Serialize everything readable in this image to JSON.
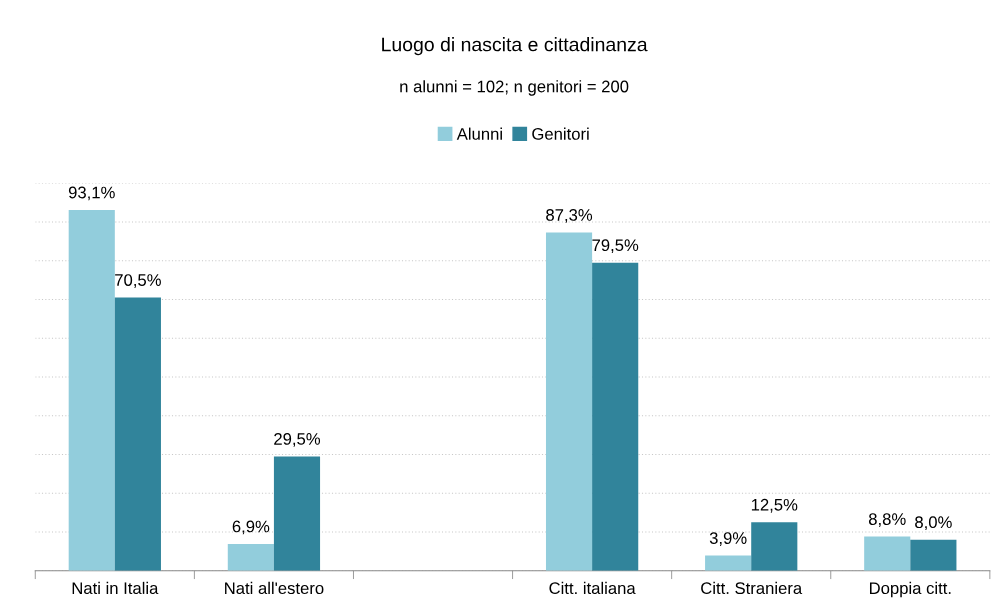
{
  "chart_data": {
    "type": "bar",
    "title": "Luogo di nascita e cittadinanza",
    "subtitle": "n alunni = 102; n genitori = 200",
    "categories": [
      "Nati in Italia",
      "Nati all'estero",
      null,
      "Citt. italiana",
      "Citt. Straniera",
      "Doppia citt."
    ],
    "series": [
      {
        "name": "Alunni",
        "color": "#92cddc",
        "values": [
          93.1,
          6.9,
          null,
          87.3,
          3.9,
          8.8
        ],
        "value_labels": [
          "93,1%",
          "6,9%",
          null,
          "87,3%",
          "3,9%",
          "8,8%"
        ]
      },
      {
        "name": "Genitori",
        "color": "#31849b",
        "values": [
          70.5,
          29.5,
          null,
          79.5,
          12.5,
          8.0
        ],
        "value_labels": [
          "70,5%",
          "29,5%",
          null,
          "79,5%",
          "12,5%",
          "8,0%"
        ]
      }
    ],
    "ylim": [
      0,
      100
    ],
    "yticks": [
      0,
      10,
      20,
      30,
      40,
      50,
      60,
      70,
      80,
      90,
      100
    ],
    "tick_labels": "x",
    "grid": "y",
    "legend": "top"
  }
}
